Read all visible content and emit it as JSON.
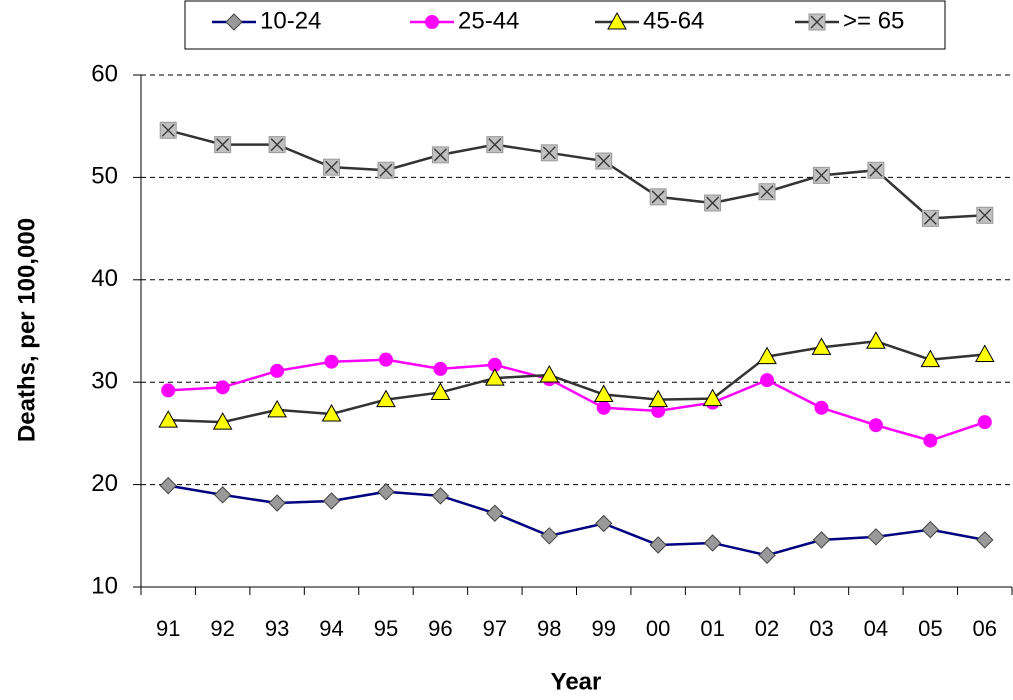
{
  "chart_data": {
    "type": "line",
    "y_label": "Deaths, per 100,000",
    "x_label": "Year",
    "categories": [
      "91",
      "92",
      "93",
      "94",
      "95",
      "96",
      "97",
      "98",
      "99",
      "00",
      "01",
      "02",
      "03",
      "04",
      "05",
      "06"
    ],
    "ylim": [
      10,
      60
    ],
    "yticks": [
      10,
      20,
      30,
      40,
      50,
      60
    ],
    "grid": true,
    "legend": "top",
    "series": [
      {
        "name": "10-24",
        "color": "#000080",
        "marker": "diamond",
        "values": [
          19.9,
          19.0,
          18.2,
          18.4,
          19.3,
          18.9,
          17.2,
          15.0,
          16.2,
          14.1,
          14.3,
          13.1,
          14.6,
          14.9,
          15.6,
          14.6
        ]
      },
      {
        "name": "25-44",
        "color": "#ff00ff",
        "marker": "circle",
        "values": [
          29.2,
          29.5,
          31.1,
          32.0,
          32.2,
          31.3,
          31.7,
          30.3,
          27.5,
          27.2,
          28.0,
          30.2,
          27.5,
          25.8,
          24.3,
          26.1
        ]
      },
      {
        "name": "45-64",
        "color": "#333333",
        "marker": "triangle",
        "values": [
          26.3,
          26.1,
          27.3,
          26.9,
          28.3,
          29.0,
          30.4,
          30.7,
          28.8,
          28.3,
          28.4,
          32.5,
          33.4,
          34.0,
          32.2,
          32.7
        ]
      },
      {
        "name": ">= 65",
        "color": "#333333",
        "marker": "square-x",
        "values": [
          54.6,
          53.2,
          53.2,
          51.0,
          50.7,
          52.2,
          53.2,
          52.4,
          51.6,
          48.1,
          47.5,
          48.6,
          50.2,
          50.7,
          46.0,
          46.3
        ]
      }
    ]
  }
}
